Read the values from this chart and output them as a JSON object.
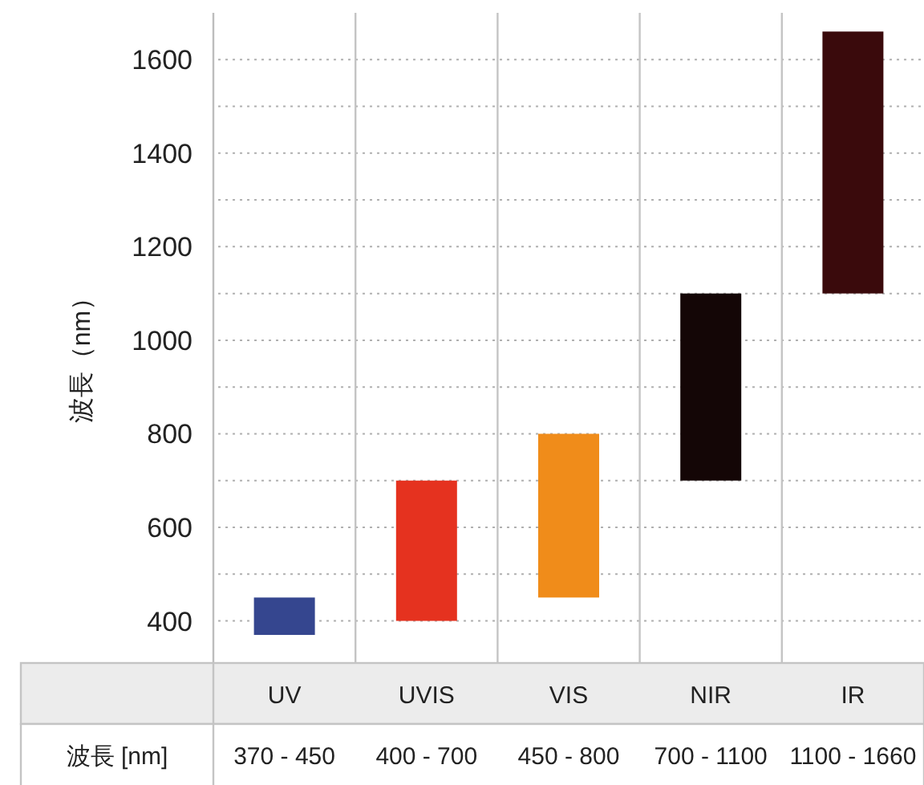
{
  "chart_data": {
    "type": "bar",
    "ylabel": "波長（nm）",
    "categories": [
      "UV",
      "UVIS",
      "VIS",
      "NIR",
      "IR"
    ],
    "base": [
      370,
      400,
      450,
      700,
      1100
    ],
    "values": [
      80,
      300,
      350,
      400,
      560
    ],
    "colors": [
      "#35468f",
      "#e5321f",
      "#f08c1a",
      "#140606",
      "#3a0a0c"
    ],
    "annotations": [
      "波長 [nm]",
      "370 - 450",
      "400 - 700",
      "450 - 800",
      "700 - 1100",
      "1100 - 1660"
    ],
    "ylim": [
      310,
      1700
    ],
    "yticks": [
      400,
      {
        "value": 500,
        "label": null
      },
      600,
      {
        "value": 700,
        "label": null
      },
      800,
      {
        "value": 900,
        "label": null
      },
      1000,
      {
        "value": 1100,
        "label": null
      },
      1200,
      {
        "value": 1300,
        "label": null
      },
      1400,
      {
        "value": 1500,
        "label": null
      },
      1600
    ],
    "grid": "y"
  }
}
